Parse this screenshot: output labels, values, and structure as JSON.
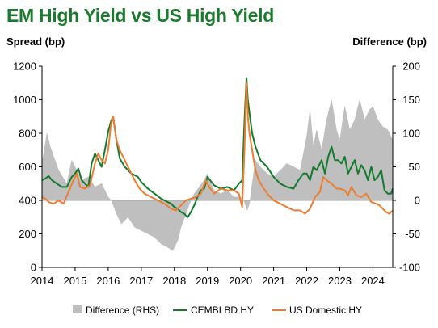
{
  "chart_data": {
    "type": "line",
    "title": "EM High Yield vs US High Yield",
    "ylabel": "Spread (bp)",
    "y2label": "Difference (bp)",
    "ylim": [
      0,
      1200
    ],
    "y2lim": [
      -100,
      200
    ],
    "xlim": [
      2014.0,
      2024.6
    ],
    "x_ticks": [
      "2014",
      "2015",
      "2016",
      "2017",
      "2018",
      "2019",
      "2020",
      "2021",
      "2022",
      "2023",
      "2024"
    ],
    "y_ticks": [
      "0",
      "200",
      "400",
      "600",
      "800",
      "1000",
      "1200"
    ],
    "y2_ticks": [
      "-100",
      "-50",
      "0",
      "50",
      "100",
      "150",
      "200"
    ],
    "grid": false,
    "legend_position": "bottom",
    "series": [
      {
        "name": "Difference (RHS)",
        "type": "area",
        "axis": "right",
        "color": "#bfbfbf",
        "x": [
          2014.0,
          2014.15,
          2014.25,
          2014.5,
          2014.75,
          2014.9,
          2015.0,
          2015.2,
          2015.4,
          2015.6,
          2015.8,
          2016.0,
          2016.1,
          2016.25,
          2016.4,
          2016.6,
          2016.8,
          2017.0,
          2017.2,
          2017.4,
          2017.6,
          2017.8,
          2017.95,
          2018.1,
          2018.2,
          2018.35,
          2018.5,
          2018.6,
          2018.75,
          2018.9,
          2019.0,
          2019.2,
          2019.4,
          2019.6,
          2019.8,
          2020.0,
          2020.1,
          2020.2,
          2020.27,
          2020.35,
          2020.45,
          2020.6,
          2020.8,
          2021.0,
          2021.2,
          2021.4,
          2021.6,
          2021.8,
          2022.0,
          2022.1,
          2022.2,
          2022.3,
          2022.45,
          2022.6,
          2022.75,
          2022.9,
          2023.0,
          2023.15,
          2023.3,
          2023.45,
          2023.6,
          2023.75,
          2023.9,
          2024.0,
          2024.15,
          2024.3,
          2024.45,
          2024.6
        ],
        "values": [
          55,
          100,
          80,
          45,
          25,
          60,
          50,
          30,
          35,
          20,
          25,
          5,
          0,
          -20,
          -35,
          -25,
          -40,
          -45,
          -50,
          -55,
          -65,
          -70,
          -75,
          -60,
          -40,
          -20,
          0,
          10,
          20,
          30,
          40,
          15,
          10,
          15,
          5,
          5,
          0,
          -15,
          -5,
          25,
          60,
          50,
          40,
          35,
          45,
          55,
          50,
          45,
          95,
          135,
          80,
          105,
          75,
          120,
          150,
          105,
          90,
          140,
          105,
          120,
          150,
          120,
          135,
          140,
          120,
          110,
          105,
          90
        ]
      },
      {
        "name": "CEMBI BD HY",
        "type": "line",
        "axis": "left",
        "color": "#137a2c",
        "x": [
          2014.0,
          2014.1,
          2014.2,
          2014.3,
          2014.45,
          2014.6,
          2014.75,
          2014.9,
          2015.0,
          2015.1,
          2015.2,
          2015.3,
          2015.4,
          2015.5,
          2015.6,
          2015.7,
          2015.8,
          2015.9,
          2016.0,
          2016.08,
          2016.15,
          2016.25,
          2016.35,
          2016.5,
          2016.7,
          2016.9,
          2017.0,
          2017.2,
          2017.4,
          2017.6,
          2017.8,
          2017.9,
          2018.0,
          2018.1,
          2018.2,
          2018.3,
          2018.4,
          2018.5,
          2018.6,
          2018.7,
          2018.8,
          2018.9,
          2019.0,
          2019.2,
          2019.4,
          2019.6,
          2019.8,
          2019.95,
          2020.05,
          2020.12,
          2020.18,
          2020.22,
          2020.27,
          2020.35,
          2020.45,
          2020.6,
          2020.8,
          2021.0,
          2021.2,
          2021.4,
          2021.6,
          2021.75,
          2021.9,
          2022.0,
          2022.1,
          2022.2,
          2022.3,
          2022.45,
          2022.55,
          2022.65,
          2022.75,
          2022.85,
          2022.95,
          2023.05,
          2023.15,
          2023.25,
          2023.35,
          2023.45,
          2023.55,
          2023.65,
          2023.75,
          2023.85,
          2023.95,
          2024.05,
          2024.15,
          2024.25,
          2024.35,
          2024.45,
          2024.55,
          2024.6
        ],
        "values": [
          520,
          530,
          545,
          520,
          500,
          480,
          480,
          540,
          560,
          590,
          520,
          500,
          480,
          620,
          680,
          640,
          600,
          700,
          810,
          870,
          900,
          760,
          650,
          600,
          560,
          540,
          510,
          470,
          440,
          410,
          390,
          380,
          360,
          350,
          330,
          320,
          300,
          330,
          370,
          420,
          460,
          470,
          540,
          490,
          470,
          480,
          460,
          500,
          520,
          880,
          1130,
          1000,
          920,
          800,
          720,
          640,
          600,
          540,
          500,
          480,
          470,
          520,
          560,
          560,
          520,
          600,
          580,
          640,
          560,
          660,
          720,
          640,
          640,
          620,
          660,
          560,
          600,
          640,
          560,
          610,
          580,
          520,
          600,
          520,
          540,
          580,
          460,
          440,
          440,
          470
        ]
      },
      {
        "name": "US Domestic HY",
        "type": "line",
        "axis": "left",
        "color": "#ed7d31",
        "x": [
          2014.0,
          2014.1,
          2014.2,
          2014.35,
          2014.5,
          2014.65,
          2014.8,
          2014.95,
          2015.05,
          2015.15,
          2015.3,
          2015.45,
          2015.6,
          2015.7,
          2015.8,
          2015.9,
          2016.0,
          2016.08,
          2016.15,
          2016.25,
          2016.35,
          2016.5,
          2016.65,
          2016.8,
          2016.95,
          2017.1,
          2017.3,
          2017.5,
          2017.7,
          2017.9,
          2018.05,
          2018.2,
          2018.35,
          2018.5,
          2018.65,
          2018.8,
          2018.95,
          2019.05,
          2019.2,
          2019.4,
          2019.6,
          2019.8,
          2019.95,
          2020.05,
          2020.12,
          2020.18,
          2020.22,
          2020.27,
          2020.35,
          2020.45,
          2020.55,
          2020.7,
          2020.85,
          2021.0,
          2021.2,
          2021.4,
          2021.6,
          2021.8,
          2021.95,
          2022.1,
          2022.25,
          2022.4,
          2022.5,
          2022.6,
          2022.75,
          2022.9,
          2023.0,
          2023.15,
          2023.25,
          2023.35,
          2023.5,
          2023.65,
          2023.8,
          2023.95,
          2024.1,
          2024.2,
          2024.3,
          2024.4,
          2024.5,
          2024.6
        ],
        "values": [
          420,
          410,
          390,
          380,
          400,
          380,
          450,
          520,
          560,
          480,
          470,
          490,
          620,
          680,
          640,
          620,
          700,
          850,
          900,
          760,
          700,
          640,
          580,
          520,
          470,
          440,
          420,
          400,
          380,
          350,
          340,
          370,
          400,
          410,
          420,
          440,
          520,
          480,
          440,
          470,
          460,
          460,
          440,
          360,
          720,
          1100,
          900,
          800,
          700,
          580,
          520,
          470,
          430,
          400,
          380,
          360,
          340,
          340,
          320,
          350,
          420,
          450,
          540,
          520,
          500,
          470,
          470,
          460,
          430,
          480,
          430,
          420,
          440,
          390,
          380,
          370,
          350,
          330,
          320,
          340
        ]
      }
    ]
  }
}
